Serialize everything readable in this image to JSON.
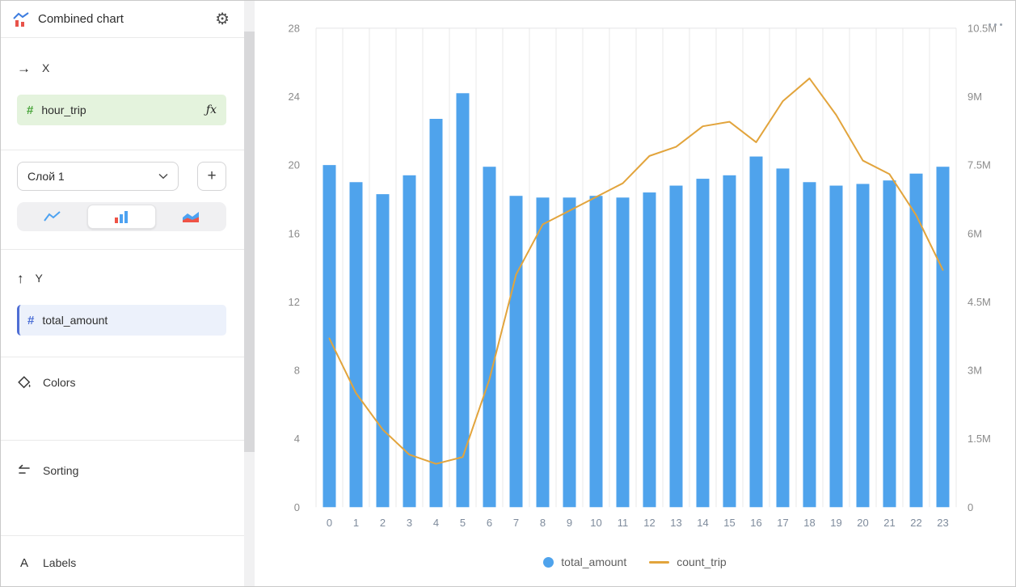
{
  "window": {
    "title": "Combined chart"
  },
  "icons": {
    "gear": "⚙",
    "arrow_right": "→",
    "arrow_up": "↑",
    "plus": "+",
    "hash": "#",
    "fx": "ƒx",
    "labels_a": "A"
  },
  "sidebar": {
    "x_section": {
      "label": "X",
      "field": "hour_trip"
    },
    "layer": {
      "selected": "Слой 1"
    },
    "y_section": {
      "label": "Y",
      "field": "total_amount"
    },
    "colors": {
      "label": "Colors"
    },
    "sorting": {
      "label": "Sorting"
    },
    "labels": {
      "label": "Labels"
    }
  },
  "colors": {
    "bar": "#4fa3ec",
    "line": "#e2a43c",
    "dimension_chip_bg": "#e4f3dd",
    "dimension_accent": "#49a53b",
    "measure_chip_bg": "#ecf1fb",
    "measure_accent": "#4c6fd6"
  },
  "chart_data": {
    "type": "combo",
    "x": [
      "0",
      "1",
      "2",
      "3",
      "4",
      "5",
      "6",
      "7",
      "8",
      "9",
      "10",
      "11",
      "12",
      "13",
      "14",
      "15",
      "16",
      "17",
      "18",
      "19",
      "20",
      "21",
      "22",
      "23"
    ],
    "series": [
      {
        "name": "total_amount",
        "type": "bar",
        "axis": "left",
        "values": [
          20,
          19,
          18.3,
          19.4,
          22.7,
          24.2,
          19.9,
          18.2,
          18.1,
          18.1,
          18.2,
          18.1,
          18.4,
          18.8,
          19.2,
          19.4,
          20.5,
          19.8,
          19,
          18.8,
          18.9,
          19.1,
          19.5,
          19.9
        ]
      },
      {
        "name": "count_trip",
        "type": "line",
        "axis": "right",
        "unit": "millions",
        "values": [
          3.7,
          2.5,
          1.7,
          1.15,
          0.95,
          1.1,
          2.8,
          5.1,
          6.2,
          6.5,
          6.8,
          7.1,
          7.7,
          7.9,
          8.35,
          8.45,
          8.0,
          8.9,
          9.4,
          8.6,
          7.6,
          7.3,
          6.4,
          5.2
        ]
      }
    ],
    "left_axis": {
      "ticks": [
        0,
        4,
        8,
        12,
        16,
        20,
        24,
        28
      ],
      "max": 28
    },
    "right_axis": {
      "labels": [
        "0",
        "1.5M",
        "3M",
        "4.5M",
        "6M",
        "7.5M",
        "9M",
        "10.5M"
      ],
      "values": [
        0,
        1.5,
        3,
        4.5,
        6,
        7.5,
        9,
        10.5
      ],
      "max": 10.5
    },
    "gridlines": "vertical",
    "legend_position": "bottom",
    "legend": [
      {
        "name": "total_amount",
        "marker": "circle"
      },
      {
        "name": "count_trip",
        "marker": "line"
      }
    ]
  }
}
